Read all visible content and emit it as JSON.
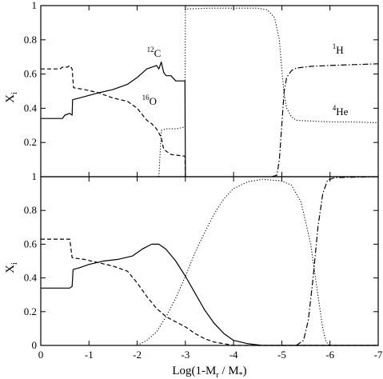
{
  "chart_data": [
    {
      "type": "line",
      "panel": "top",
      "ylabel": "X",
      "ylabel_sub": "i",
      "xlim": [
        0,
        -7
      ],
      "ylim": [
        0,
        1
      ],
      "xticks": [
        0,
        -1,
        -2,
        -3,
        -4,
        -5,
        -6,
        -7
      ],
      "xtick_labels": [],
      "yticks": [
        0.2,
        0.4,
        0.6,
        0.8,
        1
      ],
      "ytick_labels": [
        "0.2",
        "0.4",
        "0.6",
        "0.8",
        "1"
      ],
      "grid": false,
      "series": [
        {
          "name": "12C",
          "style": "solid",
          "points": [
            [
              0,
              0.34
            ],
            [
              -0.45,
              0.34
            ],
            [
              -0.5,
              0.36
            ],
            [
              -0.6,
              0.37
            ],
            [
              -0.65,
              0.36
            ],
            [
              -0.66,
              0.45
            ],
            [
              -0.8,
              0.46
            ],
            [
              -1.2,
              0.49
            ],
            [
              -1.5,
              0.51
            ],
            [
              -1.8,
              0.54
            ],
            [
              -2.0,
              0.58
            ],
            [
              -2.2,
              0.63
            ],
            [
              -2.4,
              0.65
            ],
            [
              -2.45,
              0.63
            ],
            [
              -2.5,
              0.67
            ],
            [
              -2.55,
              0.61
            ],
            [
              -2.6,
              0.59
            ],
            [
              -2.7,
              0.59
            ],
            [
              -2.8,
              0.56
            ],
            [
              -2.99,
              0.56
            ],
            [
              -3.0,
              0.0
            ]
          ]
        },
        {
          "name": "16O",
          "style": "dashed",
          "points": [
            [
              0,
              0.63
            ],
            [
              -0.4,
              0.63
            ],
            [
              -0.45,
              0.64
            ],
            [
              -0.55,
              0.64
            ],
            [
              -0.6,
              0.65
            ],
            [
              -0.65,
              0.63
            ],
            [
              -0.68,
              0.52
            ],
            [
              -0.9,
              0.51
            ],
            [
              -1.2,
              0.49
            ],
            [
              -1.5,
              0.46
            ],
            [
              -1.8,
              0.44
            ],
            [
              -2.0,
              0.4
            ],
            [
              -2.2,
              0.33
            ],
            [
              -2.3,
              0.31
            ],
            [
              -2.4,
              0.28
            ],
            [
              -2.5,
              0.23
            ],
            [
              -2.55,
              0.16
            ],
            [
              -2.7,
              0.13
            ],
            [
              -2.99,
              0.12
            ],
            [
              -3.0,
              0.0
            ]
          ]
        },
        {
          "name": "4He",
          "style": "dotted",
          "points": [
            [
              -2.45,
              0.0
            ],
            [
              -2.5,
              0.27
            ],
            [
              -2.6,
              0.28
            ],
            [
              -2.8,
              0.28
            ],
            [
              -2.99,
              0.29
            ],
            [
              -3.0,
              0.98
            ],
            [
              -3.5,
              0.985
            ],
            [
              -4.5,
              0.985
            ],
            [
              -4.7,
              0.975
            ],
            [
              -4.85,
              0.93
            ],
            [
              -4.95,
              0.8
            ],
            [
              -5.0,
              0.63
            ],
            [
              -5.05,
              0.48
            ],
            [
              -5.1,
              0.4
            ],
            [
              -5.2,
              0.35
            ],
            [
              -5.3,
              0.33
            ],
            [
              -5.6,
              0.325
            ],
            [
              -6.0,
              0.32
            ],
            [
              -6.5,
              0.32
            ],
            [
              -7.0,
              0.315
            ]
          ]
        },
        {
          "name": "1H",
          "style": "dashdot",
          "points": [
            [
              -4.8,
              0.0
            ],
            [
              -4.9,
              0.01
            ],
            [
              -4.95,
              0.1
            ],
            [
              -5.0,
              0.3
            ],
            [
              -5.05,
              0.5
            ],
            [
              -5.1,
              0.58
            ],
            [
              -5.2,
              0.62
            ],
            [
              -5.3,
              0.635
            ],
            [
              -5.6,
              0.645
            ],
            [
              -6.0,
              0.65
            ],
            [
              -6.5,
              0.655
            ],
            [
              -7.0,
              0.66
            ]
          ]
        }
      ],
      "annotations": [
        {
          "sup": "12",
          "text": "C",
          "x": -2.2,
          "y": 0.7
        },
        {
          "sup": "16",
          "text": "O",
          "x": -2.1,
          "y": 0.42
        },
        {
          "sup": "1",
          "text": "H",
          "x": -6.05,
          "y": 0.72
        },
        {
          "sup": "4",
          "text": "He",
          "x": -6.05,
          "y": 0.36
        }
      ]
    },
    {
      "type": "line",
      "panel": "bottom",
      "xlabel": "Log(1-M",
      "xlabel_sub1": "r",
      "xlabel_mid": " / M",
      "xlabel_sub2": "*",
      "xlabel_end": ")",
      "ylabel": "X",
      "ylabel_sub": "i",
      "xlim": [
        0,
        -7
      ],
      "ylim": [
        0,
        1
      ],
      "xticks": [
        0,
        -1,
        -2,
        -3,
        -4,
        -5,
        -6,
        -7
      ],
      "xtick_labels": [
        "0",
        "-1",
        "-2",
        "-3",
        "-4",
        "-5",
        "-6",
        "-7"
      ],
      "yticks": [
        0,
        0.2,
        0.4,
        0.6,
        0.8,
        1
      ],
      "ytick_labels": [
        "0",
        "0.2",
        "0.4",
        "0.6",
        "0.8",
        "1"
      ],
      "grid": false,
      "series": [
        {
          "name": "12C",
          "style": "solid",
          "points": [
            [
              0,
              0.34
            ],
            [
              -0.6,
              0.34
            ],
            [
              -0.65,
              0.35
            ],
            [
              -0.67,
              0.45
            ],
            [
              -0.8,
              0.46
            ],
            [
              -1.0,
              0.48
            ],
            [
              -1.3,
              0.5
            ],
            [
              -1.6,
              0.51
            ],
            [
              -1.9,
              0.53
            ],
            [
              -2.1,
              0.57
            ],
            [
              -2.3,
              0.6
            ],
            [
              -2.45,
              0.6
            ],
            [
              -2.6,
              0.57
            ],
            [
              -2.8,
              0.5
            ],
            [
              -3.0,
              0.41
            ],
            [
              -3.2,
              0.31
            ],
            [
              -3.4,
              0.21
            ],
            [
              -3.6,
              0.13
            ],
            [
              -3.8,
              0.07
            ],
            [
              -4.0,
              0.03
            ],
            [
              -4.3,
              0.01
            ],
            [
              -4.6,
              0.0
            ],
            [
              -7.0,
              0.0
            ]
          ]
        },
        {
          "name": "16O",
          "style": "dashed",
          "points": [
            [
              0,
              0.63
            ],
            [
              -0.6,
              0.63
            ],
            [
              -0.65,
              0.52
            ],
            [
              -0.9,
              0.51
            ],
            [
              -1.2,
              0.49
            ],
            [
              -1.5,
              0.47
            ],
            [
              -1.8,
              0.44
            ],
            [
              -2.0,
              0.37
            ],
            [
              -2.2,
              0.29
            ],
            [
              -2.4,
              0.22
            ],
            [
              -2.6,
              0.17
            ],
            [
              -2.8,
              0.14
            ],
            [
              -3.0,
              0.11
            ],
            [
              -3.2,
              0.07
            ],
            [
              -3.4,
              0.04
            ],
            [
              -3.6,
              0.02
            ],
            [
              -3.8,
              0.01
            ],
            [
              -4.0,
              0.0
            ],
            [
              -7.0,
              0.0
            ]
          ]
        },
        {
          "name": "4He",
          "style": "dotted",
          "points": [
            [
              -2.0,
              0.0
            ],
            [
              -2.2,
              0.03
            ],
            [
              -2.4,
              0.08
            ],
            [
              -2.6,
              0.17
            ],
            [
              -2.8,
              0.28
            ],
            [
              -3.0,
              0.41
            ],
            [
              -3.2,
              0.55
            ],
            [
              -3.4,
              0.67
            ],
            [
              -3.6,
              0.78
            ],
            [
              -3.8,
              0.87
            ],
            [
              -4.0,
              0.93
            ],
            [
              -4.3,
              0.97
            ],
            [
              -4.6,
              0.985
            ],
            [
              -5.0,
              0.975
            ],
            [
              -5.2,
              0.95
            ],
            [
              -5.4,
              0.85
            ],
            [
              -5.6,
              0.6
            ],
            [
              -5.75,
              0.3
            ],
            [
              -5.85,
              0.1
            ],
            [
              -5.92,
              0.02
            ],
            [
              -6.0,
              0.0
            ]
          ]
        },
        {
          "name": "1H",
          "style": "dashdot",
          "points": [
            [
              -5.3,
              0.0
            ],
            [
              -5.45,
              0.03
            ],
            [
              -5.55,
              0.15
            ],
            [
              -5.65,
              0.4
            ],
            [
              -5.75,
              0.7
            ],
            [
              -5.85,
              0.9
            ],
            [
              -5.95,
              0.98
            ],
            [
              -6.1,
              0.995
            ],
            [
              -7.0,
              1.0
            ]
          ]
        }
      ]
    }
  ]
}
